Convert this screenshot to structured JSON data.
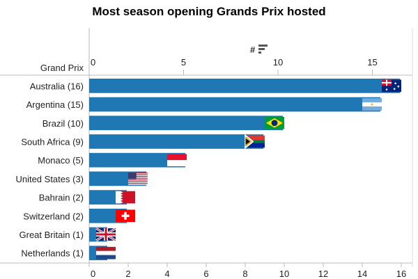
{
  "chart_data": {
    "type": "bar",
    "orientation": "horizontal",
    "title": "Most season opening Grands Prix hosted",
    "ylabel": "Grand Prix",
    "xlabel": "#",
    "categories": [
      "Australia (16)",
      "Argentina (15)",
      "Brazil (10)",
      "South Africa (9)",
      "Monaco (5)",
      "United States (3)",
      "Bahrain (2)",
      "Switzerland (2)",
      "Great Britain (1)",
      "Netherlands (1)"
    ],
    "values": [
      16,
      15,
      10,
      9,
      5,
      3,
      2,
      2,
      1,
      1
    ],
    "flags": [
      "australia",
      "argentina",
      "brazil",
      "south-africa",
      "monaco",
      "united-states",
      "bahrain",
      "switzerland",
      "great-britain",
      "netherlands"
    ],
    "top_ticks": [
      0,
      5,
      10,
      15
    ],
    "bottom_ticks": [
      0,
      2,
      4,
      6,
      8,
      10,
      12,
      14,
      16
    ],
    "xlim": [
      0,
      16.8
    ],
    "bar_color": "#1f77b4",
    "sort_icon": "sort-descending-icon"
  }
}
